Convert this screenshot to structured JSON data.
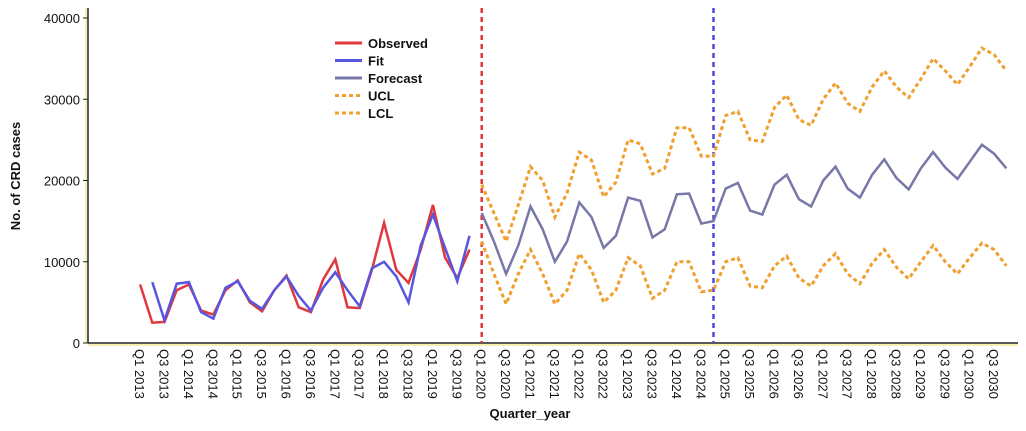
{
  "chart_data": {
    "type": "line",
    "xlabel": "Quarter_year",
    "ylabel": "No. of CRD cases",
    "categories": [
      "Q1 2013",
      null,
      "Q3 2013",
      null,
      "Q1 2014",
      null,
      "Q3 2014",
      null,
      "Q1 2015",
      null,
      "Q3 2015",
      null,
      "Q1 2016",
      null,
      "Q3 2016",
      null,
      "Q1 2017",
      null,
      "Q3 2017",
      null,
      "Q1 2018",
      null,
      "Q3 2018",
      null,
      "Q1 2019",
      null,
      "Q3 2019",
      null,
      "Q1 2020",
      null,
      "Q3 2020",
      null,
      "Q1 2021",
      null,
      "Q3 2021",
      null,
      "Q1 2022",
      null,
      "Q3 2022",
      null,
      "Q1 2023",
      null,
      "Q3 2023",
      null,
      "Q1 2024",
      null,
      "Q3 2024",
      null,
      "Q1 2025",
      null,
      "Q3 2025",
      null,
      "Q1 2026",
      null,
      "Q3 2026",
      null,
      "Q1 2027",
      null,
      "Q3 2027",
      null,
      "Q1 2028",
      null,
      "Q3 2028",
      null,
      "Q1 2029",
      null,
      "Q3 2029",
      null,
      "Q1 2030",
      null,
      "Q3 2030",
      null
    ],
    "series": [
      {
        "name": "Observed",
        "color": "#e0383c",
        "dash": "none",
        "values": [
          7200,
          2500,
          2600,
          6500,
          7200,
          4000,
          3500,
          6500,
          7700,
          5000,
          3900,
          6500,
          8300,
          4400,
          3800,
          7800,
          10300,
          4400,
          4300,
          9000,
          14800,
          9000,
          7400,
          11500,
          17000,
          10500,
          8000,
          11500,
          null,
          null,
          null,
          null,
          null,
          null,
          null,
          null,
          null,
          null,
          null,
          null,
          null,
          null,
          null,
          null,
          null,
          null,
          null,
          null,
          null,
          null,
          null,
          null,
          null,
          null,
          null,
          null,
          null,
          null,
          null,
          null,
          null,
          null,
          null,
          null,
          null,
          null,
          null,
          null,
          null,
          null,
          null,
          null
        ]
      },
      {
        "name": "Fit",
        "color": "#5656e0",
        "dash": "none",
        "values": [
          null,
          7500,
          2800,
          7300,
          7500,
          3800,
          3000,
          6800,
          7600,
          5200,
          4200,
          6500,
          8200,
          5800,
          4000,
          6800,
          8700,
          6500,
          4500,
          9200,
          10000,
          8200,
          5000,
          12000,
          15800,
          11700,
          7600,
          13200,
          null,
          null,
          null,
          null,
          null,
          null,
          null,
          null,
          null,
          null,
          null,
          null,
          null,
          null,
          null,
          null,
          null,
          null,
          null,
          null,
          null,
          null,
          null,
          null,
          null,
          null,
          null,
          null,
          null,
          null,
          null,
          null,
          null,
          null,
          null,
          null,
          null,
          null,
          null,
          null,
          null,
          null,
          null,
          null
        ]
      },
      {
        "name": "Forecast",
        "color": "#7878a8",
        "dash": "none",
        "values": [
          null,
          null,
          null,
          null,
          null,
          null,
          null,
          null,
          null,
          null,
          null,
          null,
          null,
          null,
          null,
          null,
          null,
          null,
          null,
          null,
          null,
          null,
          null,
          null,
          null,
          null,
          null,
          null,
          16000,
          12500,
          8500,
          12000,
          16800,
          14000,
          10000,
          12500,
          17300,
          15500,
          11700,
          13200,
          17900,
          17500,
          13000,
          14000,
          18300,
          18400,
          14700,
          15000,
          19000,
          19700,
          16300,
          15800,
          19500,
          20700,
          17700,
          16800,
          20000,
          21700,
          19000,
          17900,
          20700,
          22600,
          20300,
          18900,
          21500,
          23500,
          21600,
          20200,
          22300,
          24400,
          23300,
          21500
        ]
      },
      {
        "name": "UCL",
        "color": "#f0a030",
        "dash": "4 3",
        "values": [
          null,
          null,
          null,
          null,
          null,
          null,
          null,
          null,
          null,
          null,
          null,
          null,
          null,
          null,
          null,
          null,
          null,
          null,
          null,
          null,
          null,
          null,
          null,
          null,
          null,
          null,
          null,
          null,
          19500,
          16000,
          12500,
          17000,
          21700,
          20000,
          15500,
          18500,
          23500,
          22500,
          18000,
          19800,
          25000,
          24500,
          20800,
          21500,
          26500,
          26500,
          23000,
          23000,
          28000,
          28500,
          25000,
          24800,
          29000,
          30500,
          27500,
          26800,
          30000,
          32000,
          29500,
          28500,
          31500,
          33500,
          31500,
          30200,
          32500,
          35000,
          33500,
          31800,
          34000,
          36300,
          35500,
          33500
        ]
      },
      {
        "name": "LCL",
        "color": "#f0a030",
        "dash": "4 3",
        "values": [
          null,
          null,
          null,
          null,
          null,
          null,
          null,
          null,
          null,
          null,
          null,
          null,
          null,
          null,
          null,
          null,
          null,
          null,
          null,
          null,
          null,
          null,
          null,
          null,
          null,
          null,
          null,
          null,
          12500,
          8500,
          4800,
          8500,
          11500,
          8500,
          4800,
          6500,
          11000,
          9000,
          5000,
          6500,
          10500,
          9500,
          5500,
          6500,
          10000,
          10000,
          6300,
          6500,
          10000,
          10500,
          7000,
          6800,
          9500,
          10700,
          8000,
          7000,
          9500,
          11000,
          8500,
          7300,
          9800,
          11500,
          9300,
          7900,
          10000,
          12000,
          10000,
          8500,
          10500,
          12300,
          11500,
          9500
        ]
      }
    ],
    "vlines": [
      {
        "x": 28,
        "color": "#e0383c"
      },
      {
        "x": 47,
        "color": "#4a4ae0"
      }
    ],
    "ylim": [
      0,
      40000
    ],
    "yticks": [
      0,
      10000,
      20000,
      30000,
      40000
    ]
  }
}
